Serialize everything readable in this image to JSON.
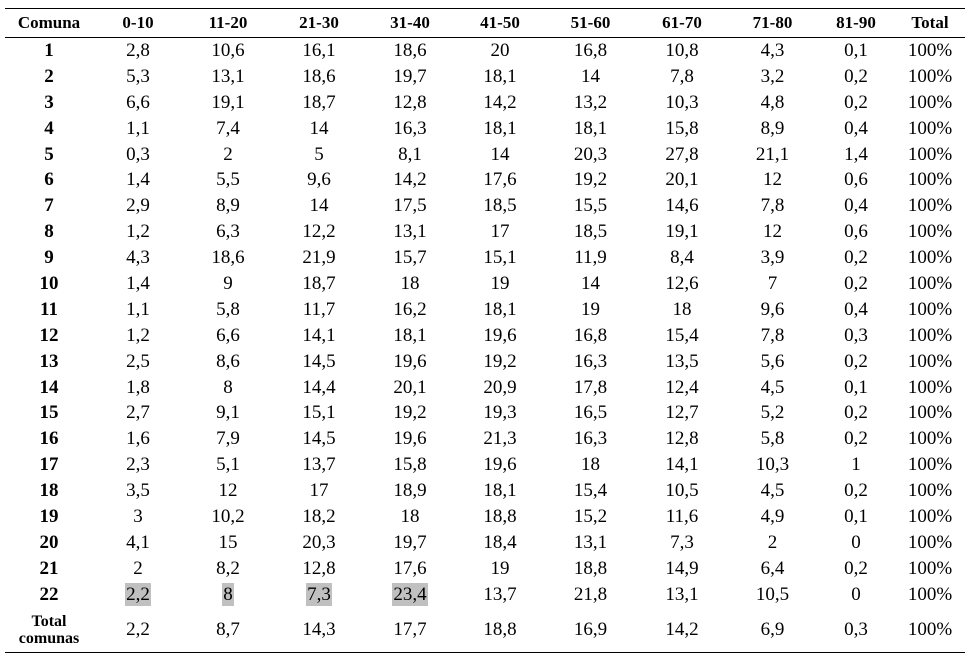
{
  "table": {
    "headers": [
      "Comuna",
      "0-10",
      "11-20",
      "21-30",
      "31-40",
      "41-50",
      "51-60",
      "61-70",
      "71-80",
      "81-90",
      "Total"
    ],
    "rows": [
      [
        "1",
        "2,8",
        "10,6",
        "16,1",
        "18,6",
        "20",
        "16,8",
        "10,8",
        "4,3",
        "0,1",
        "100%"
      ],
      [
        "2",
        "5,3",
        "13,1",
        "18,6",
        "19,7",
        "18,1",
        "14",
        "7,8",
        "3,2",
        "0,2",
        "100%"
      ],
      [
        "3",
        "6,6",
        "19,1",
        "18,7",
        "12,8",
        "14,2",
        "13,2",
        "10,3",
        "4,8",
        "0,2",
        "100%"
      ],
      [
        "4",
        "1,1",
        "7,4",
        "14",
        "16,3",
        "18,1",
        "18,1",
        "15,8",
        "8,9",
        "0,4",
        "100%"
      ],
      [
        "5",
        "0,3",
        "2",
        "5",
        "8,1",
        "14",
        "20,3",
        "27,8",
        "21,1",
        "1,4",
        "100%"
      ],
      [
        "6",
        "1,4",
        "5,5",
        "9,6",
        "14,2",
        "17,6",
        "19,2",
        "20,1",
        "12",
        "0,6",
        "100%"
      ],
      [
        "7",
        "2,9",
        "8,9",
        "14",
        "17,5",
        "18,5",
        "15,5",
        "14,6",
        "7,8",
        "0,4",
        "100%"
      ],
      [
        "8",
        "1,2",
        "6,3",
        "12,2",
        "13,1",
        "17",
        "18,5",
        "19,1",
        "12",
        "0,6",
        "100%"
      ],
      [
        "9",
        "4,3",
        "18,6",
        "21,9",
        "15,7",
        "15,1",
        "11,9",
        "8,4",
        "3,9",
        "0,2",
        "100%"
      ],
      [
        "10",
        "1,4",
        "9",
        "18,7",
        "18",
        "19",
        "14",
        "12,6",
        "7",
        "0,2",
        "100%"
      ],
      [
        "11",
        "1,1",
        "5,8",
        "11,7",
        "16,2",
        "18,1",
        "19",
        "18",
        "9,6",
        "0,4",
        "100%"
      ],
      [
        "12",
        "1,2",
        "6,6",
        "14,1",
        "18,1",
        "19,6",
        "16,8",
        "15,4",
        "7,8",
        "0,3",
        "100%"
      ],
      [
        "13",
        "2,5",
        "8,6",
        "14,5",
        "19,6",
        "19,2",
        "16,3",
        "13,5",
        "5,6",
        "0,2",
        "100%"
      ],
      [
        "14",
        "1,8",
        "8",
        "14,4",
        "20,1",
        "20,9",
        "17,8",
        "12,4",
        "4,5",
        "0,1",
        "100%"
      ],
      [
        "15",
        "2,7",
        "9,1",
        "15,1",
        "19,2",
        "19,3",
        "16,5",
        "12,7",
        "5,2",
        "0,2",
        "100%"
      ],
      [
        "16",
        "1,6",
        "7,9",
        "14,5",
        "19,6",
        "21,3",
        "16,3",
        "12,8",
        "5,8",
        "0,2",
        "100%"
      ],
      [
        "17",
        "2,3",
        "5,1",
        "13,7",
        "15,8",
        "19,6",
        "18",
        "14,1",
        "10,3",
        "1",
        "100%"
      ],
      [
        "18",
        "3,5",
        "12",
        "17",
        "18,9",
        "18,1",
        "15,4",
        "10,5",
        "4,5",
        "0,2",
        "100%"
      ],
      [
        "19",
        "3",
        "10,2",
        "18,2",
        "18",
        "18,8",
        "15,2",
        "11,6",
        "4,9",
        "0,1",
        "100%"
      ],
      [
        "20",
        "4,1",
        "15",
        "20,3",
        "19,7",
        "18,4",
        "13,1",
        "7,3",
        "2",
        "0",
        "100%"
      ],
      [
        "21",
        "2",
        "8,2",
        "12,8",
        "17,6",
        "19",
        "18,8",
        "14,9",
        "6,4",
        "0,2",
        "100%"
      ],
      [
        "22",
        "2,2",
        "8",
        "7,3",
        "23,4",
        "13,7",
        "21,8",
        "13,1",
        "10,5",
        "0",
        "100%"
      ],
      [
        "Total comunas",
        "2,2",
        "8,7",
        "14,3",
        "17,7",
        "18,8",
        "16,9",
        "14,2",
        "6,9",
        "0,3",
        "100%"
      ]
    ]
  }
}
